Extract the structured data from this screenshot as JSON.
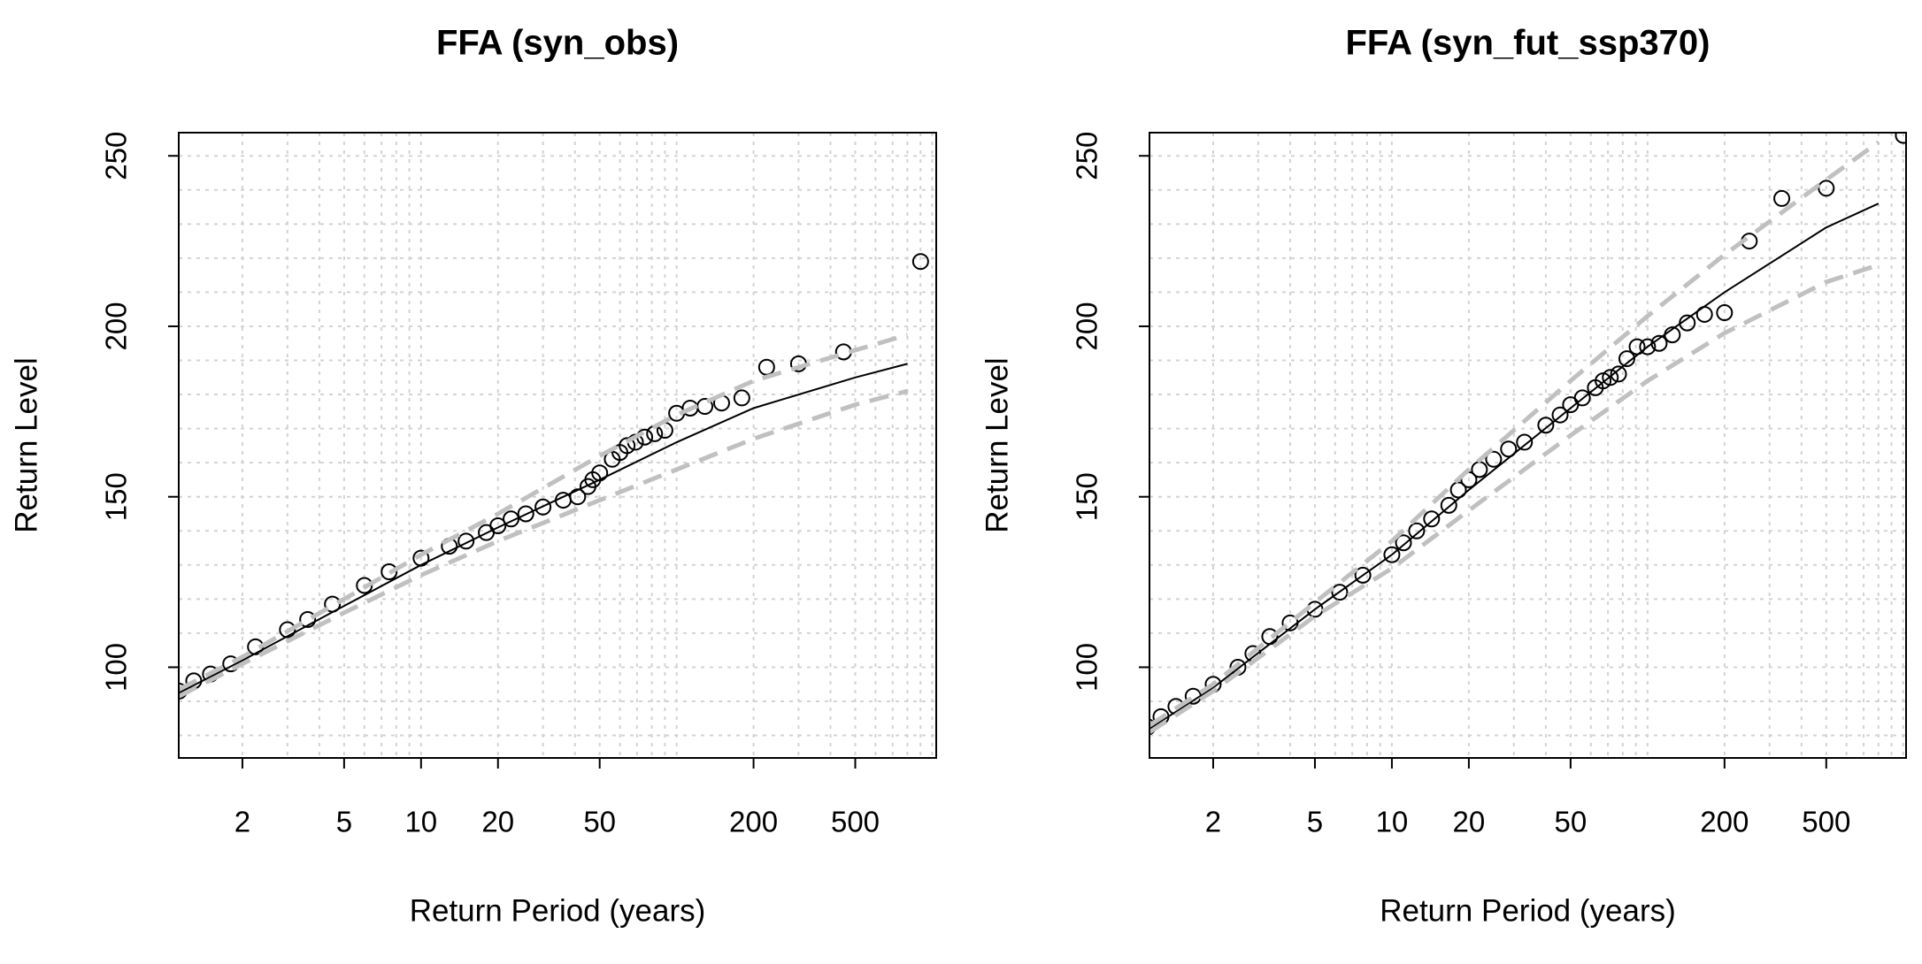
{
  "chart_data": [
    {
      "type": "scatter",
      "title": "FFA (syn_obs)",
      "x_label": "Return Period (years)",
      "y_label": "Return Level",
      "log_x": true,
      "grid": true,
      "xlim": [
        1.127,
        1037
      ],
      "ylim": [
        73.4,
        256.8
      ],
      "xticks": [
        2,
        5,
        10,
        20,
        50,
        200,
        500
      ],
      "yticks": [
        100,
        150,
        200,
        250
      ],
      "series": [
        {
          "style": "points",
          "color": "#000000",
          "x": [
            901,
            450,
            300,
            225,
            180,
            150,
            129,
            113,
            100,
            90,
            82,
            75,
            69,
            64,
            60,
            56,
            50,
            47,
            45,
            41,
            36,
            30,
            25.7,
            22.5,
            20,
            18,
            15,
            12.9,
            10,
            7.5,
            6,
            4.5,
            3.6,
            3,
            2.25,
            1.8,
            1.5,
            1.29,
            1.13
          ],
          "values": [
            219,
            192.5,
            189,
            188,
            179,
            177.5,
            176.5,
            176,
            174.5,
            169.5,
            168.5,
            167.5,
            166,
            165,
            163,
            161,
            157,
            155,
            153,
            150,
            149,
            147,
            145,
            143.5,
            141.5,
            139.5,
            137,
            135.5,
            132,
            128,
            124,
            118.5,
            114,
            111,
            106,
            101,
            98,
            96,
            93
          ]
        },
        {
          "style": "line",
          "color": "#000000",
          "x": [
            1.13,
            2,
            5,
            10,
            20,
            50,
            100,
            200,
            500,
            800
          ],
          "values": [
            92.5,
            102,
            118,
            130,
            141,
            155,
            166,
            176,
            185,
            189
          ]
        },
        {
          "style": "dashed",
          "color": "#c0c0c0",
          "x": [
            1.13,
            2,
            5,
            10,
            20,
            50,
            100,
            200,
            500,
            800
          ],
          "values": [
            93.5,
            103,
            120,
            133,
            145,
            162,
            174,
            184,
            193,
            197.5
          ]
        },
        {
          "style": "dashed",
          "color": "#c0c0c0",
          "x": [
            1.13,
            2,
            5,
            10,
            20,
            50,
            100,
            200,
            500,
            800
          ],
          "values": [
            91.5,
            101,
            116,
            127,
            137,
            149,
            158,
            167,
            177,
            181
          ]
        }
      ]
    },
    {
      "type": "scatter",
      "title": "FFA (syn_fut_ssp370)",
      "x_label": "Return Period (years)",
      "y_label": "Return Level",
      "log_x": true,
      "grid": true,
      "xlim": [
        1.127,
        1026
      ],
      "ylim": [
        73.4,
        256.8
      ],
      "xticks": [
        2,
        5,
        10,
        20,
        50,
        200,
        500
      ],
      "yticks": [
        100,
        150,
        200,
        250
      ],
      "series": [
        {
          "style": "points",
          "color": "#000000",
          "x": [
            1001,
            500,
            335,
            250,
            200,
            167,
            143,
            125,
            111,
            100,
            91,
            83,
            77,
            71.5,
            67,
            62.5,
            55.6,
            50,
            45.5,
            40,
            33,
            28.6,
            25,
            22,
            20,
            18.2,
            16.7,
            14.3,
            12.5,
            11.1,
            10,
            7.7,
            6.25,
            5,
            4,
            3.33,
            2.86,
            2.5,
            2,
            1.67,
            1.43,
            1.25,
            1.11
          ],
          "values": [
            256,
            240.5,
            237.5,
            225,
            204,
            203.5,
            201,
            197.5,
            195,
            194,
            194,
            190.5,
            186,
            185,
            184,
            182,
            179,
            177,
            174,
            171,
            166,
            164,
            161,
            158,
            155,
            152,
            147.5,
            143.5,
            140,
            136.5,
            133,
            127,
            122,
            117,
            113,
            109,
            104,
            100,
            95,
            91.5,
            88.5,
            85.5,
            82.5
          ]
        },
        {
          "style": "line",
          "color": "#000000",
          "x": [
            1.13,
            2,
            5,
            10,
            20,
            50,
            100,
            200,
            500,
            800
          ],
          "values": [
            82,
            94,
            117,
            133,
            152,
            176,
            194,
            210,
            229,
            236
          ]
        },
        {
          "style": "dashed",
          "color": "#c0c0c0",
          "x": [
            1.13,
            2,
            5,
            10,
            20,
            50,
            100,
            200,
            500,
            800
          ],
          "values": [
            83,
            95,
            119,
            137,
            158,
            184,
            203,
            221,
            243,
            254
          ]
        },
        {
          "style": "dashed",
          "color": "#c0c0c0",
          "x": [
            1.13,
            2,
            5,
            10,
            20,
            50,
            100,
            200,
            500,
            800
          ],
          "values": [
            81,
            93,
            115,
            129,
            146,
            168,
            184,
            198,
            213,
            218
          ]
        }
      ]
    }
  ]
}
